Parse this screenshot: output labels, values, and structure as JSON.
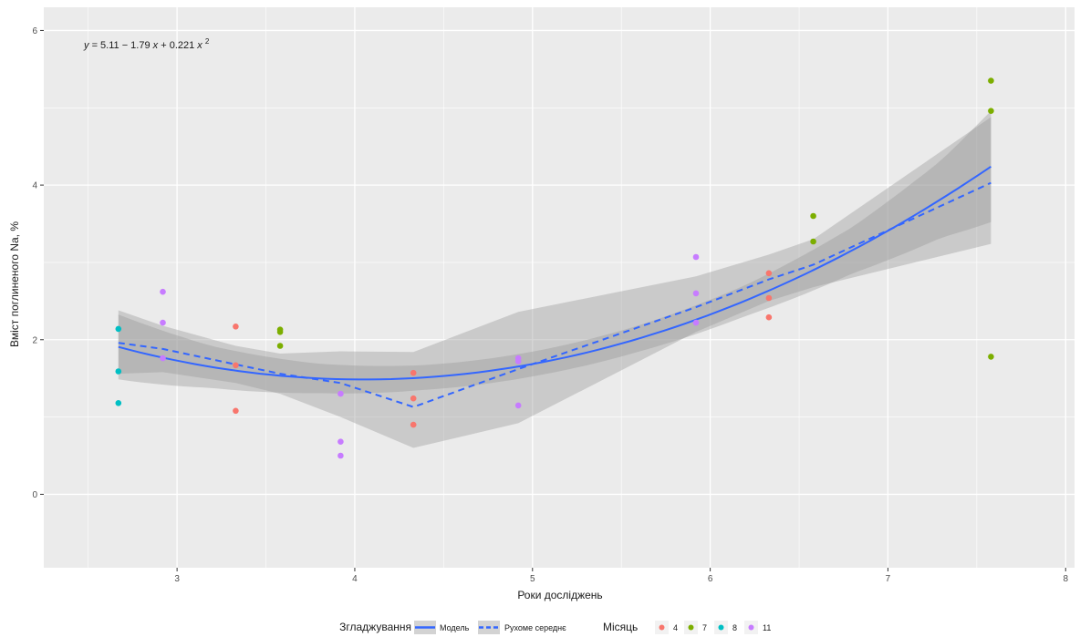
{
  "chart_data": {
    "type": "scatter",
    "equation": {
      "y": "y",
      "eq": "= 5.11 − 1.79",
      "x1": "x",
      "plus": "+ 0.221",
      "x2": "x",
      "exp": "2"
    },
    "xlabel": "Роки досліджень",
    "ylabel": "Вміст поглиненого Na, %",
    "xlim": [
      2.25,
      8.05
    ],
    "ylim": [
      -0.95,
      6.3
    ],
    "xticks": [
      3,
      4,
      5,
      6,
      7,
      8
    ],
    "yticks": [
      0,
      2,
      4,
      6
    ],
    "grid": true,
    "panel_background": "#ebebeb",
    "grid_color": "#ffffff",
    "legend": {
      "position": "bottom",
      "smoothing_title": "Згладжування",
      "smoothing_items": [
        {
          "label": "Модель",
          "linetype": "solid"
        },
        {
          "label": "Рухоме середнє",
          "linetype": "dashed"
        }
      ],
      "month_title": "Місяць",
      "month_items": [
        {
          "label": "4",
          "color": "#F8766D"
        },
        {
          "label": "7",
          "color": "#7CAE00"
        },
        {
          "label": "8",
          "color": "#00BFC4"
        },
        {
          "label": "11",
          "color": "#C77CFF"
        }
      ]
    },
    "points": [
      {
        "x": 2.67,
        "y": 2.14,
        "month": "8"
      },
      {
        "x": 2.67,
        "y": 1.59,
        "month": "8"
      },
      {
        "x": 2.67,
        "y": 1.18,
        "month": "8"
      },
      {
        "x": 2.92,
        "y": 2.62,
        "month": "11"
      },
      {
        "x": 2.92,
        "y": 2.22,
        "month": "11"
      },
      {
        "x": 2.92,
        "y": 1.76,
        "month": "11"
      },
      {
        "x": 3.33,
        "y": 2.17,
        "month": "4"
      },
      {
        "x": 3.33,
        "y": 1.67,
        "month": "4"
      },
      {
        "x": 3.33,
        "y": 1.08,
        "month": "4"
      },
      {
        "x": 3.58,
        "y": 2.13,
        "month": "7"
      },
      {
        "x": 3.58,
        "y": 2.1,
        "month": "7"
      },
      {
        "x": 3.58,
        "y": 1.92,
        "month": "7"
      },
      {
        "x": 3.92,
        "y": 1.3,
        "month": "11"
      },
      {
        "x": 3.92,
        "y": 0.68,
        "month": "11"
      },
      {
        "x": 3.92,
        "y": 0.5,
        "month": "11"
      },
      {
        "x": 4.33,
        "y": 1.57,
        "month": "4"
      },
      {
        "x": 4.33,
        "y": 1.24,
        "month": "4"
      },
      {
        "x": 4.33,
        "y": 0.9,
        "month": "4"
      },
      {
        "x": 4.92,
        "y": 1.76,
        "month": "11"
      },
      {
        "x": 4.92,
        "y": 1.72,
        "month": "11"
      },
      {
        "x": 4.92,
        "y": 1.15,
        "month": "11"
      },
      {
        "x": 5.92,
        "y": 3.07,
        "month": "11"
      },
      {
        "x": 5.92,
        "y": 2.6,
        "month": "11"
      },
      {
        "x": 5.92,
        "y": 2.22,
        "month": "11"
      },
      {
        "x": 6.33,
        "y": 2.86,
        "month": "4"
      },
      {
        "x": 6.33,
        "y": 2.54,
        "month": "4"
      },
      {
        "x": 6.33,
        "y": 2.29,
        "month": "4"
      },
      {
        "x": 6.58,
        "y": 3.6,
        "month": "7"
      },
      {
        "x": 6.58,
        "y": 3.27,
        "month": "7"
      },
      {
        "x": 7.58,
        "y": 5.35,
        "month": "7"
      },
      {
        "x": 7.58,
        "y": 4.96,
        "month": "7"
      },
      {
        "x": 7.58,
        "y": 1.78,
        "month": "7"
      }
    ],
    "model_fit": {
      "formula": "y = 5.11 - 1.79x + 0.221x^2",
      "coefficients": [
        5.11,
        -1.79,
        0.221
      ],
      "x_range": [
        2.67,
        7.58
      ],
      "band_halfwidth": {
        "x": [
          2.67,
          3.2,
          3.8,
          4.4,
          5.0,
          5.6,
          6.2,
          6.8,
          7.3,
          7.58
        ],
        "hw": [
          0.42,
          0.27,
          0.19,
          0.16,
          0.16,
          0.17,
          0.2,
          0.3,
          0.5,
          0.72
        ]
      }
    },
    "moving_average": {
      "x": [
        2.67,
        2.92,
        3.33,
        3.58,
        3.92,
        4.33,
        4.92,
        5.92,
        6.33,
        6.58,
        7.58
      ],
      "y": [
        1.96,
        1.88,
        1.68,
        1.56,
        1.44,
        1.13,
        1.62,
        2.42,
        2.78,
        2.97,
        4.03
      ],
      "lower": [
        1.56,
        1.58,
        1.44,
        1.3,
        1.0,
        0.6,
        0.92,
        2.1,
        2.5,
        2.68,
        3.24
      ],
      "upper": [
        2.38,
        2.18,
        1.92,
        1.82,
        1.85,
        1.84,
        2.36,
        2.82,
        3.1,
        3.3,
        4.88
      ]
    }
  }
}
